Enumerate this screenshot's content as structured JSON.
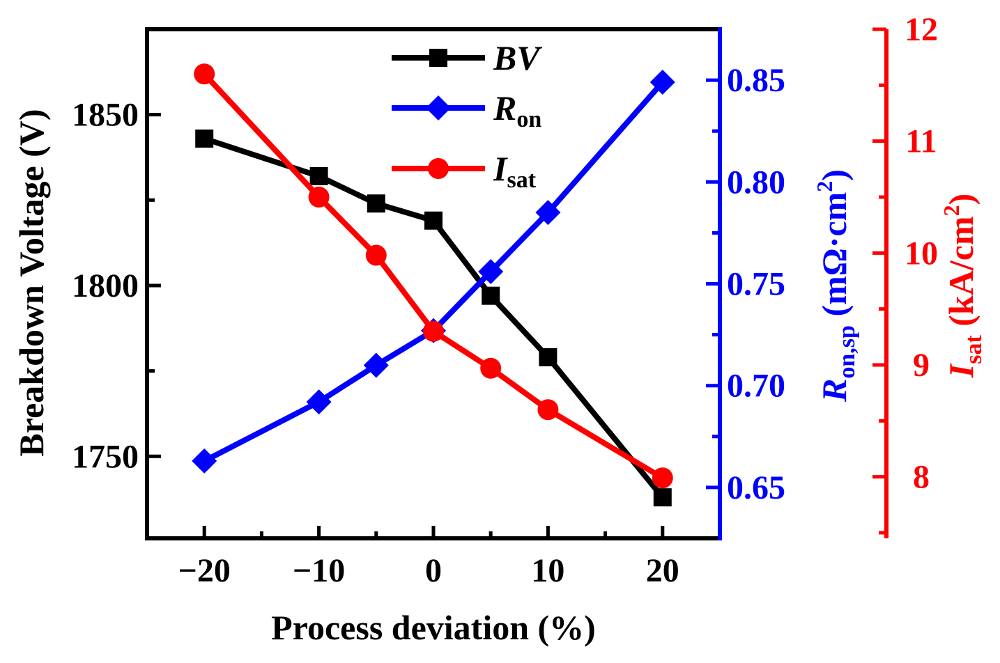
{
  "chart_data": {
    "type": "line",
    "x": [
      -20,
      -10,
      -5,
      0,
      5,
      10,
      20
    ],
    "xlabel": "Process deviation (%)",
    "xlim": [
      -25,
      25
    ],
    "xticks": [
      -20,
      -10,
      0,
      10,
      20
    ],
    "xtick_labels": [
      "−20",
      "−10",
      "0",
      "10",
      "20"
    ],
    "axes": {
      "left": {
        "label": "Breakdown Voltage (V)",
        "ylim": [
          1726,
          1875
        ],
        "ticks": [
          1750,
          1800,
          1850
        ],
        "tick_labels": [
          "1750",
          "1800",
          "1850"
        ],
        "color": "#000000"
      },
      "right1": {
        "label_main": "R",
        "label_sub": "on,sp",
        "label_unit": " (mΩ·cm",
        "label_sup": "2",
        "label_close": ")",
        "ylim": [
          0.625,
          0.875
        ],
        "ticks": [
          0.65,
          0.7,
          0.75,
          0.8,
          0.85
        ],
        "tick_labels": [
          "0.65",
          "0.70",
          "0.75",
          "0.80",
          "0.85"
        ],
        "color": "#0000ff"
      },
      "right2": {
        "label_main": "I",
        "label_sub": "sat",
        "label_unit": " (kA/cm",
        "label_sup": "2",
        "label_close": ")",
        "ylim": [
          7.45,
          12.0
        ],
        "ticks": [
          8,
          9,
          10,
          11,
          12
        ],
        "tick_labels": [
          "8",
          "9",
          "10",
          "11",
          "12"
        ],
        "color": "#ff0000"
      }
    },
    "series": [
      {
        "name": "BV",
        "axis": "left",
        "color": "#000000",
        "marker": "square",
        "values": [
          1843,
          1832,
          1824,
          1819,
          1797,
          1779,
          1738
        ]
      },
      {
        "name": "Ron",
        "axis": "right1",
        "color": "#0000ff",
        "marker": "diamond",
        "values": [
          0.663,
          0.692,
          0.71,
          0.727,
          0.756,
          0.785,
          0.849
        ]
      },
      {
        "name": "Isat",
        "axis": "right2",
        "color": "#ff0000",
        "marker": "circle",
        "values": [
          11.6,
          10.5,
          9.98,
          9.3,
          8.97,
          8.6,
          7.99
        ]
      }
    ],
    "legend": [
      {
        "main": "BV",
        "sub": "",
        "italic_main": true,
        "color": "#000000",
        "marker": "square"
      },
      {
        "main": "R",
        "sub": "on",
        "italic_main": true,
        "color": "#0000ff",
        "marker": "diamond"
      },
      {
        "main": "I",
        "sub": "sat",
        "italic_main": true,
        "color": "#ff0000",
        "marker": "circle"
      }
    ],
    "legend_position": "top-center"
  }
}
